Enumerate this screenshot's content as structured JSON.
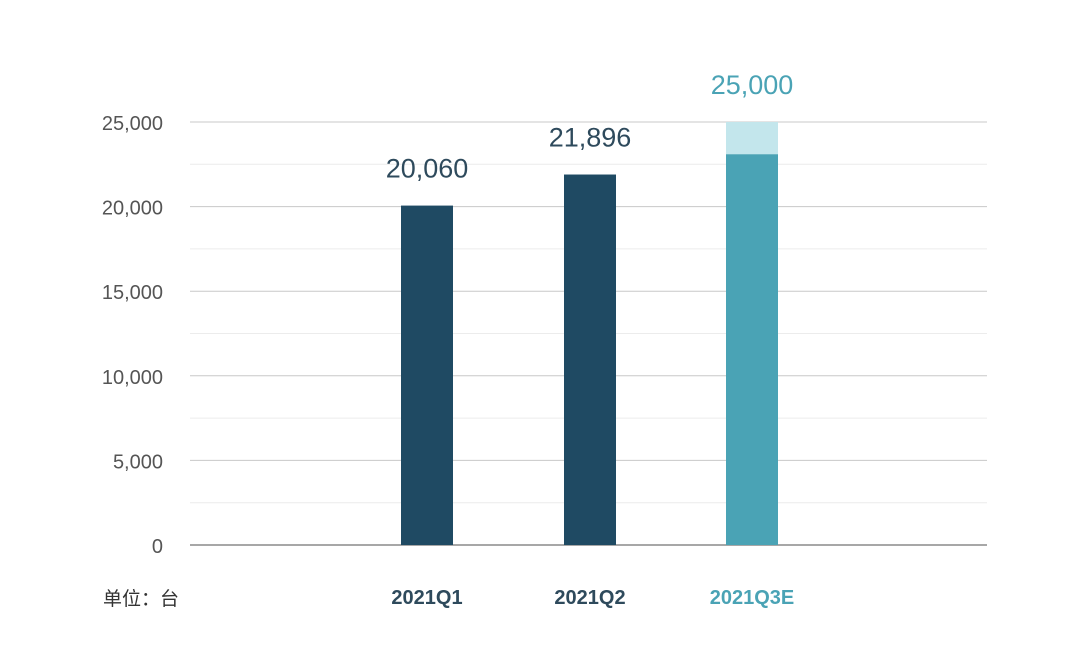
{
  "chart_data": {
    "type": "bar",
    "categories": [
      "2021Q1",
      "2021Q2",
      "2021Q3E"
    ],
    "series": [
      {
        "values": [
          20060,
          21896,
          23100
        ]
      }
    ],
    "estimate_extension": {
      "category": "2021Q3E",
      "from": 23100,
      "to": 25000
    },
    "data_labels": [
      "20,060",
      "21,896",
      "25,000"
    ],
    "ylim": [
      0,
      25000
    ],
    "yticks": [
      0,
      5000,
      10000,
      15000,
      20000,
      25000
    ],
    "ytick_labels": [
      "0",
      "5,000",
      "10,000",
      "15,000",
      "20,000",
      "25,000"
    ],
    "minor_gridlines": [
      2500,
      7500,
      12500,
      17500,
      22500
    ],
    "grid": true,
    "title": "",
    "xlabel": "",
    "ylabel": ""
  },
  "unit_label": "单位：台",
  "colors": {
    "actual_bar": "#1f4a63",
    "estimate_bar": "#4aa3b5",
    "estimate_extension": "#c3e6ec",
    "actual_label": "#2e4a5c",
    "estimate_label": "#4aa3b5",
    "axis_text": "#555555",
    "gridline": "#c8c8c8",
    "minor_gridline": "#ececec"
  }
}
